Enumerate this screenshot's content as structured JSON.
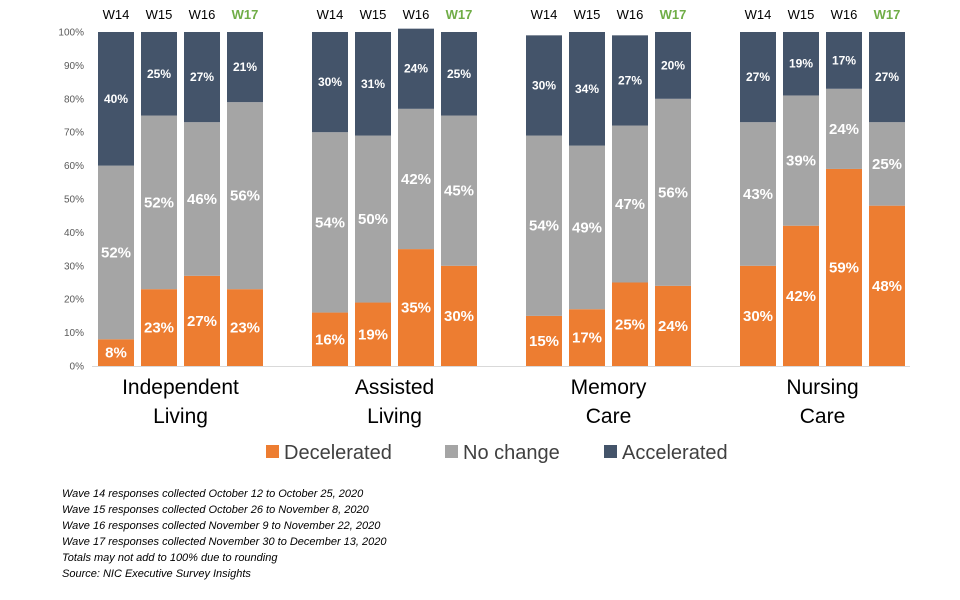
{
  "chart_data": {
    "type": "bar",
    "stacked": true,
    "normalized": true,
    "ylim": [
      0,
      100
    ],
    "yticks": [
      "0%",
      "10%",
      "20%",
      "30%",
      "40%",
      "50%",
      "60%",
      "70%",
      "80%",
      "90%",
      "100%"
    ],
    "gridlines": false,
    "legend_position": "bottom",
    "highlight_wave": "W17",
    "waves": [
      "W14",
      "W15",
      "W16",
      "W17"
    ],
    "groups": [
      {
        "name_lines": [
          "Independent",
          "Living"
        ]
      },
      {
        "name_lines": [
          "Assisted",
          "Living"
        ]
      },
      {
        "name_lines": [
          "Memory",
          "Care"
        ]
      },
      {
        "name_lines": [
          "Nursing",
          "Care"
        ]
      }
    ],
    "series": [
      {
        "name": "Decelerated",
        "color": "#ED7D31",
        "values": [
          [
            8,
            23,
            27,
            23
          ],
          [
            16,
            19,
            35,
            30
          ],
          [
            15,
            17,
            25,
            24
          ],
          [
            30,
            42,
            59,
            48
          ]
        ]
      },
      {
        "name": "No change",
        "color": "#A5A5A5",
        "values": [
          [
            52,
            52,
            46,
            56
          ],
          [
            54,
            50,
            42,
            45
          ],
          [
            54,
            49,
            47,
            56
          ],
          [
            43,
            39,
            24,
            25
          ]
        ]
      },
      {
        "name": "Accelerated",
        "color": "#44546A",
        "values": [
          [
            40,
            25,
            27,
            21
          ],
          [
            30,
            31,
            24,
            25
          ],
          [
            30,
            34,
            27,
            20
          ],
          [
            27,
            19,
            17,
            27
          ]
        ]
      }
    ]
  },
  "colors": {
    "highlight": "#70AD47",
    "text": "#000000",
    "label_light": "#FFFFFF",
    "axis": "#D9D9D9"
  },
  "notes": [
    "Wave 14 responses collected  October 12 to October 25, 2020",
    "Wave 15 responses collected  October 26 to November 8, 2020",
    "Wave 16 responses collected  November 9 to November 22, 2020",
    "Wave 17 responses collected  November 30 to December 13, 2020",
    "Totals may not add to 100% due to rounding",
    "Source: NIC Executive Survey Insights"
  ]
}
